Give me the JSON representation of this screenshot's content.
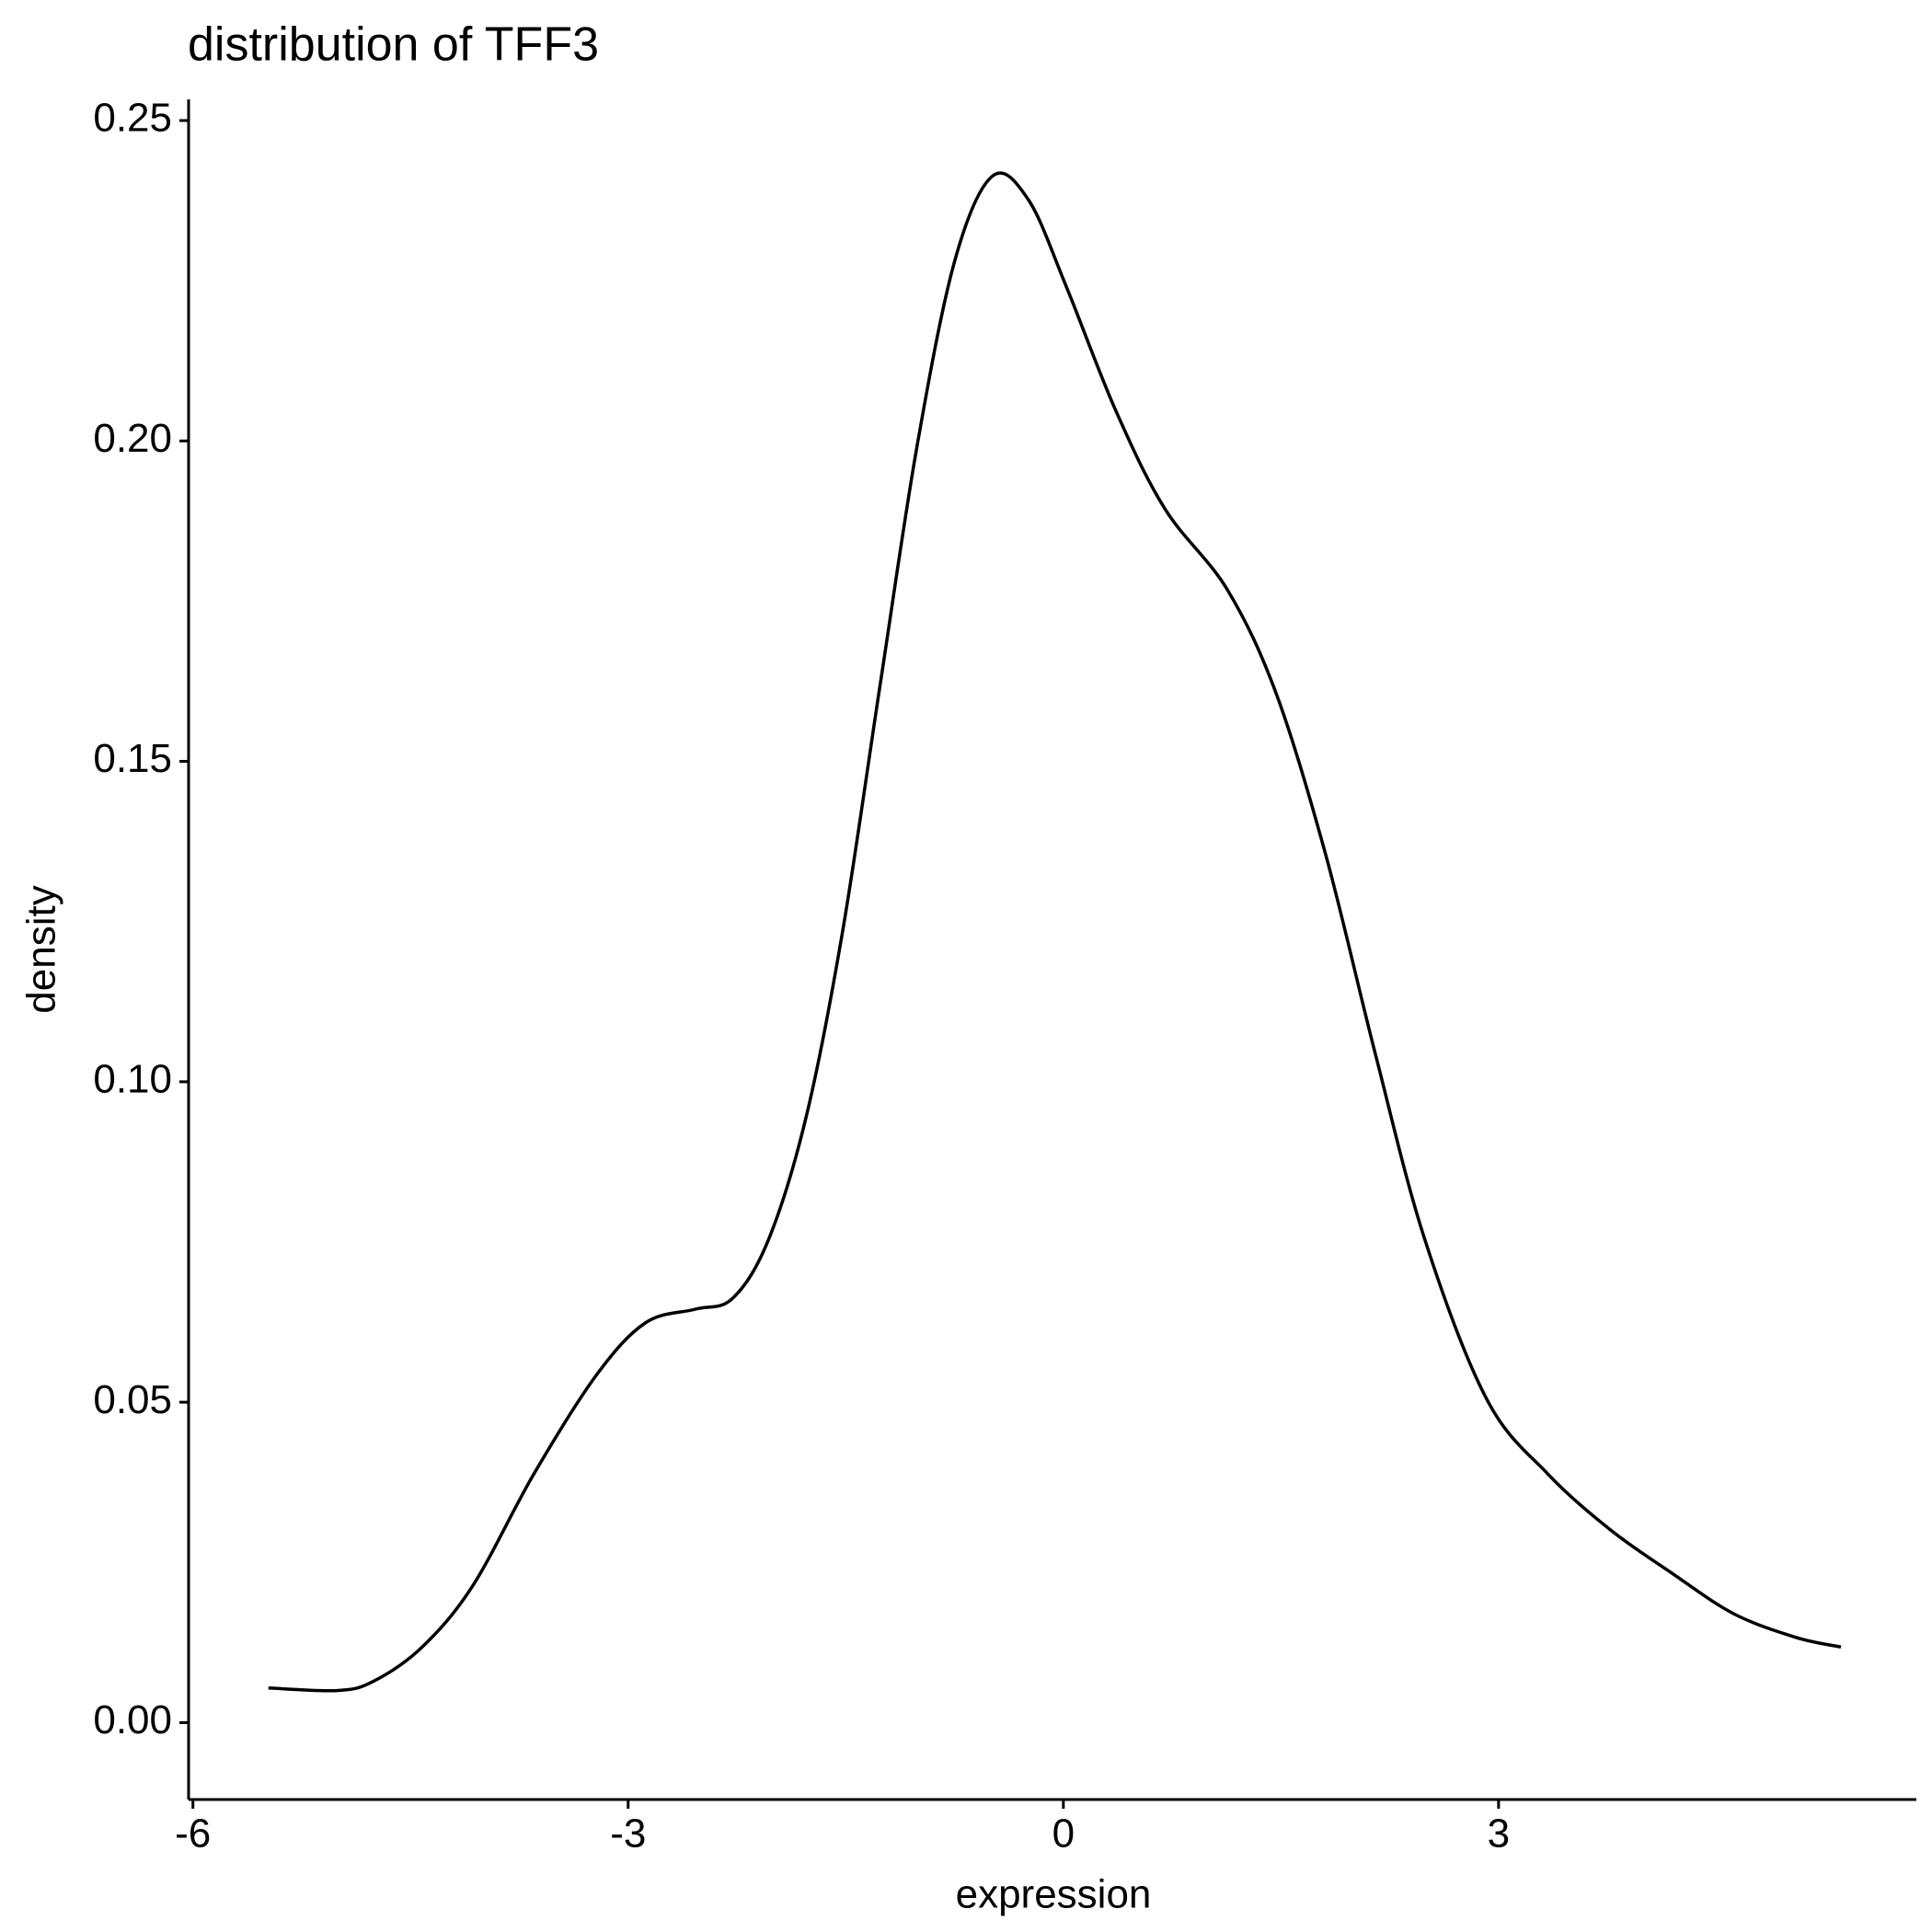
{
  "chart_data": {
    "type": "line",
    "title": "distribution of TFF3",
    "x_label": "expression",
    "y_label": "density",
    "color": "#000000",
    "x": [
      -5.48,
      -5.01,
      -4.76,
      -4.42,
      -4.07,
      -3.65,
      -3.22,
      -2.88,
      -2.54,
      -2.28,
      -2.03,
      -1.77,
      -1.52,
      -1.26,
      -1.01,
      -0.75,
      -0.49,
      -0.24,
      0.02,
      0.36,
      0.7,
      1.13,
      1.47,
      1.81,
      2.15,
      2.49,
      2.92,
      3.34,
      3.77,
      4.19,
      4.62,
      5.05,
      5.36
    ],
    "y": [
      0.0054,
      0.005,
      0.0064,
      0.0118,
      0.0214,
      0.0388,
      0.0542,
      0.0624,
      0.0645,
      0.0662,
      0.0755,
      0.0948,
      0.1237,
      0.1624,
      0.199,
      0.228,
      0.2413,
      0.2376,
      0.2241,
      0.2048,
      0.1894,
      0.1768,
      0.1604,
      0.1353,
      0.1044,
      0.0755,
      0.0504,
      0.0388,
      0.0301,
      0.0234,
      0.017,
      0.0133,
      0.0118
    ],
    "xlim": [
      -6.03,
      5.88
    ],
    "ylim": [
      -0.012,
      0.2533
    ],
    "xticks": [
      -6,
      -3,
      0,
      3
    ],
    "yticks": [
      {
        "value": 0,
        "label": "0.00"
      },
      0.05,
      {
        "value": 0.1,
        "label": "0.10"
      },
      0.15,
      {
        "value": 0.2,
        "label": "0.20"
      },
      0.25
    ]
  }
}
